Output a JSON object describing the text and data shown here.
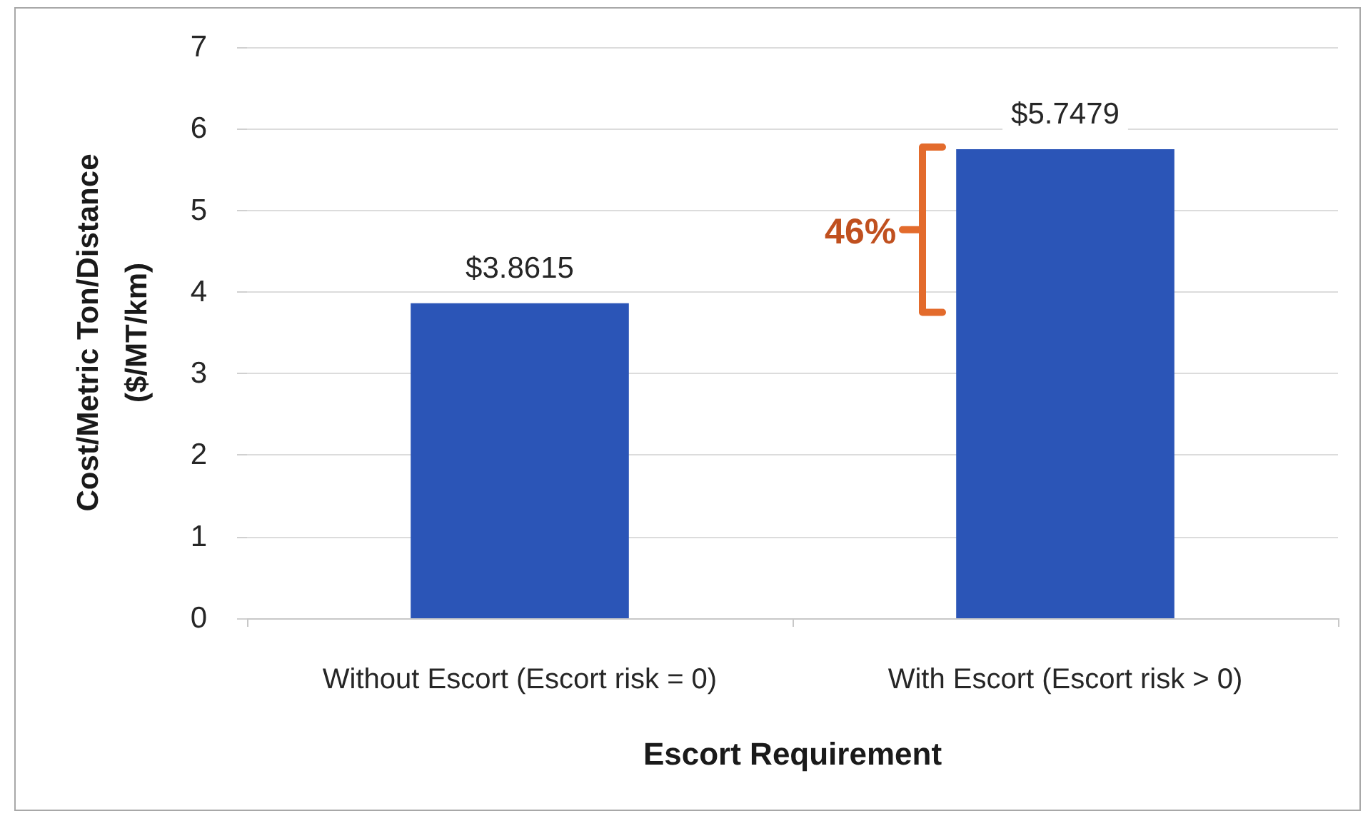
{
  "chart_data": {
    "type": "bar",
    "xlabel": "Escort Requirement",
    "ylabel": "Cost/Metric Ton/Distance\n($/MT/km)",
    "categories": [
      "Without Escort (Escort risk = 0)",
      "With Escort (Escort risk > 0)"
    ],
    "values": [
      3.8615,
      5.7479
    ],
    "value_labels": [
      "$3.8615",
      "$5.7479"
    ],
    "color": "#2b55b7",
    "ylim": [
      0,
      7
    ],
    "yticks": [
      0,
      1,
      2,
      3,
      4,
      5,
      6,
      7
    ],
    "grid": "y",
    "annotations": [
      "46%"
    ]
  }
}
